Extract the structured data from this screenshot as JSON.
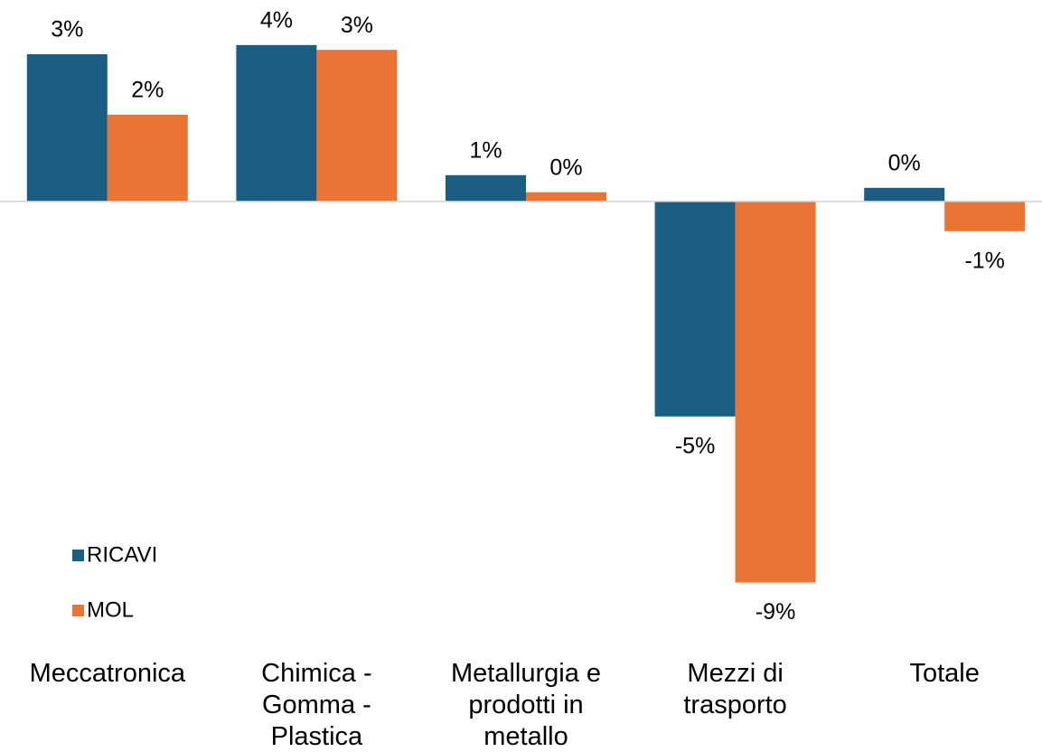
{
  "chart_data": {
    "type": "bar",
    "categories": [
      "Meccatronica",
      "Chimica - Gomma - Plastica",
      "Metallurgia e prodotti in metallo",
      "Mezzi di trasporto",
      "Totale"
    ],
    "series": [
      {
        "name": "RICAVI",
        "color": "#1a5f82",
        "values": [
          3.36,
          3.57,
          0.6,
          -4.91,
          0.31
        ],
        "value_labels": [
          "3%",
          "4%",
          "1%",
          "-5%",
          "0%"
        ]
      },
      {
        "name": "MOL",
        "color": "#ea7433",
        "values": [
          1.98,
          3.46,
          0.21,
          -8.7,
          -0.68
        ],
        "value_labels": [
          "2%",
          "3%",
          "0%",
          "-9%",
          "-1%"
        ]
      }
    ],
    "ylim": [
      -9,
      4
    ],
    "legend": "bottom-left"
  }
}
